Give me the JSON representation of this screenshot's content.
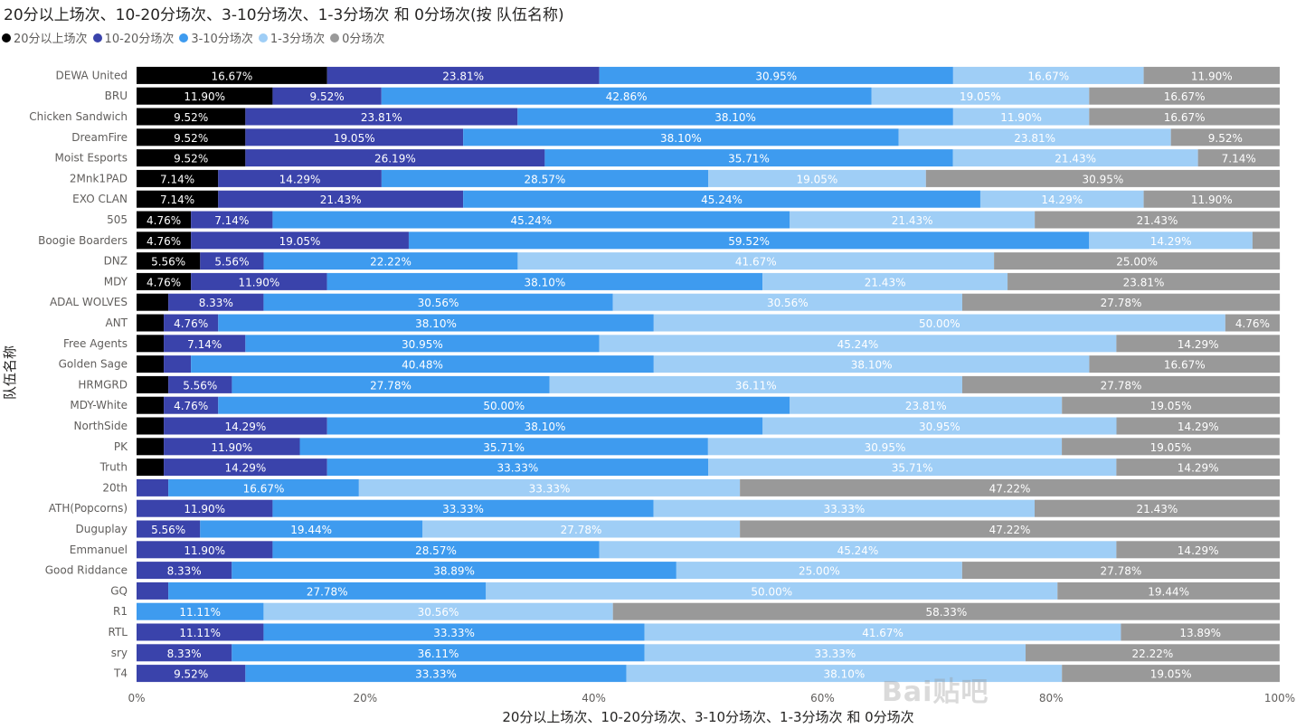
{
  "chart_data": {
    "type": "bar",
    "orientation": "horizontal",
    "stacked": "100%",
    "title": "20分以上场次、10-20分场次、3-10分场次、1-3分场次 和 0分场次(按 队伍名称)",
    "xlabel": "20分以上场次、10-20分场次、3-10分场次、1-3分场次 和 0分场次",
    "ylabel": "队伍名称",
    "xlim": [
      0,
      100
    ],
    "xticks": [
      "0%",
      "20%",
      "40%",
      "60%",
      "80%",
      "100%"
    ],
    "legend_position": "top-left",
    "categories": [
      "DEWA United",
      "BRU",
      "Chicken Sandwich",
      "DreamFire",
      "Moist Esports",
      "2Mnk1PAD",
      "EXO CLAN",
      "505",
      "Boogie Boarders",
      "DNZ",
      "MDY",
      "ADAL WOLVES",
      "ANT",
      "Free Agents",
      "Golden Sage",
      "HRMGRD",
      "MDY-White",
      "NorthSide",
      "PK",
      "Truth",
      "20th",
      "ATH(Popcorns)",
      "Duguplay",
      "Emmanuel",
      "Good Riddance",
      "GQ",
      "R1",
      "RTL",
      "sry",
      "T4"
    ],
    "series": [
      {
        "name": "20分以上场次",
        "color": "#000000",
        "values": [
          16.67,
          11.9,
          9.52,
          9.52,
          9.52,
          7.14,
          7.14,
          4.76,
          4.76,
          5.56,
          4.76,
          2.78,
          2.38,
          2.38,
          2.38,
          2.78,
          2.38,
          2.38,
          2.38,
          2.38,
          0,
          0,
          0,
          0,
          0,
          0,
          0,
          0,
          0,
          0
        ],
        "labels": [
          "16.67%",
          "11.90%",
          "9.52%",
          "9.52%",
          "9.52%",
          "7.14%",
          "7.14%",
          "4.76%",
          "4.76%",
          "5.56%",
          "4.76%",
          "",
          "",
          "",
          "",
          "",
          "",
          "",
          "",
          "",
          "",
          "",
          "",
          "",
          "",
          "",
          "",
          "",
          "",
          ""
        ]
      },
      {
        "name": "10-20分场次",
        "color": "#3a43ab",
        "values": [
          23.81,
          9.52,
          23.81,
          19.05,
          26.19,
          14.29,
          21.43,
          7.14,
          19.05,
          5.56,
          11.9,
          8.33,
          4.76,
          7.14,
          2.38,
          5.56,
          4.76,
          14.29,
          11.9,
          14.29,
          2.78,
          11.9,
          5.56,
          11.9,
          8.33,
          2.78,
          0,
          11.11,
          8.33,
          9.52
        ],
        "labels": [
          "23.81%",
          "9.52%",
          "23.81%",
          "19.05%",
          "26.19%",
          "14.29%",
          "21.43%",
          "7.14%",
          "19.05%",
          "5.56%",
          "11.90%",
          "8.33%",
          "4.76%",
          "7.14%",
          "",
          "5.56%",
          "4.76%",
          "14.29%",
          "11.90%",
          "14.29%",
          "",
          "11.90%",
          "5.56%",
          "11.90%",
          "8.33%",
          "",
          "",
          "11.11%",
          "8.33%",
          "9.52%"
        ]
      },
      {
        "name": "3-10分场次",
        "color": "#3e9bef",
        "values": [
          30.95,
          42.86,
          38.1,
          38.1,
          35.71,
          28.57,
          45.24,
          45.24,
          59.52,
          22.22,
          38.1,
          30.56,
          38.1,
          30.95,
          40.48,
          27.78,
          50.0,
          38.1,
          35.71,
          33.33,
          16.67,
          33.33,
          19.44,
          28.57,
          38.89,
          27.78,
          11.11,
          33.33,
          36.11,
          33.33
        ],
        "labels": [
          "30.95%",
          "42.86%",
          "38.10%",
          "38.10%",
          "35.71%",
          "28.57%",
          "45.24%",
          "45.24%",
          "59.52%",
          "22.22%",
          "38.10%",
          "30.56%",
          "38.10%",
          "30.95%",
          "40.48%",
          "27.78%",
          "50.00%",
          "38.10%",
          "35.71%",
          "33.33%",
          "16.67%",
          "33.33%",
          "19.44%",
          "28.57%",
          "38.89%",
          "27.78%",
          "11.11%",
          "33.33%",
          "36.11%",
          "33.33%"
        ]
      },
      {
        "name": "1-3分场次",
        "color": "#9fcef6",
        "values": [
          16.67,
          19.05,
          11.9,
          23.81,
          21.43,
          19.05,
          14.29,
          21.43,
          14.29,
          41.67,
          21.43,
          30.56,
          50.0,
          45.24,
          38.1,
          36.11,
          23.81,
          30.95,
          30.95,
          35.71,
          33.33,
          33.33,
          27.78,
          45.24,
          25.0,
          50.0,
          30.56,
          41.67,
          33.33,
          38.1
        ],
        "labels": [
          "16.67%",
          "19.05%",
          "11.90%",
          "23.81%",
          "21.43%",
          "19.05%",
          "14.29%",
          "21.43%",
          "14.29%",
          "41.67%",
          "21.43%",
          "30.56%",
          "50.00%",
          "45.24%",
          "38.10%",
          "36.11%",
          "23.81%",
          "30.95%",
          "30.95%",
          "35.71%",
          "33.33%",
          "33.33%",
          "27.78%",
          "45.24%",
          "25.00%",
          "50.00%",
          "30.56%",
          "41.67%",
          "33.33%",
          "38.10%"
        ]
      },
      {
        "name": "0分场次",
        "color": "#999999",
        "values": [
          11.9,
          16.67,
          16.67,
          9.52,
          7.14,
          30.95,
          11.9,
          21.43,
          2.38,
          25.0,
          23.81,
          27.78,
          4.76,
          14.29,
          16.67,
          27.78,
          19.05,
          14.29,
          19.05,
          14.29,
          47.22,
          21.43,
          47.22,
          14.29,
          27.78,
          19.44,
          58.33,
          13.89,
          22.22,
          19.05
        ],
        "labels": [
          "11.90%",
          "16.67%",
          "16.67%",
          "9.52%",
          "7.14%",
          "30.95%",
          "11.90%",
          "21.43%",
          "",
          "25.00%",
          "23.81%",
          "27.78%",
          "4.76%",
          "14.29%",
          "16.67%",
          "27.78%",
          "19.05%",
          "14.29%",
          "19.05%",
          "14.29%",
          "47.22%",
          "21.43%",
          "47.22%",
          "14.29%",
          "27.78%",
          "19.44%",
          "58.33%",
          "13.89%",
          "22.22%",
          "19.05%"
        ]
      }
    ]
  },
  "watermark": "Bai贴吧"
}
